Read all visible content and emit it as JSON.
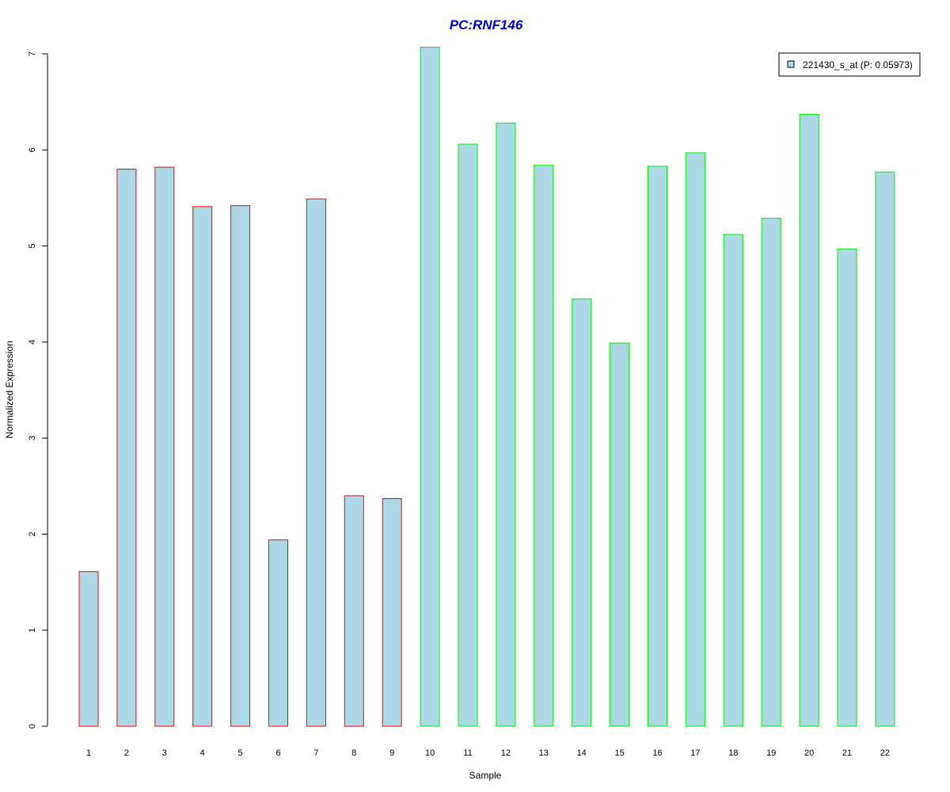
{
  "chart_data": {
    "type": "bar",
    "title": "PC:RNF146",
    "xlabel": "Sample",
    "ylabel": "Normalized Expression",
    "ylim": [
      0,
      7
    ],
    "yticks": [
      0,
      1,
      2,
      3,
      4,
      5,
      6,
      7
    ],
    "grid": false,
    "legend_position": "top-right",
    "categories": [
      "1",
      "2",
      "3",
      "4",
      "5",
      "6",
      "7",
      "8",
      "9",
      "10",
      "11",
      "12",
      "13",
      "14",
      "15",
      "16",
      "17",
      "18",
      "19",
      "20",
      "21",
      "22"
    ],
    "series": [
      {
        "name": "221430_s_at (P: 0.05973)",
        "values": [
          1.61,
          5.8,
          5.82,
          5.41,
          5.42,
          1.94,
          5.49,
          2.4,
          2.37,
          7.07,
          6.06,
          6.28,
          5.84,
          4.45,
          3.99,
          5.83,
          5.97,
          5.12,
          5.29,
          6.37,
          4.97,
          5.77
        ],
        "groups": [
          "red",
          "red",
          "red",
          "red",
          "red",
          "red",
          "red",
          "red",
          "red",
          "green",
          "green",
          "green",
          "green",
          "green",
          "green",
          "green",
          "green",
          "green",
          "green",
          "green",
          "green",
          "green"
        ]
      }
    ],
    "colors": {
      "title": "#0000cc",
      "bar_fill": "#add8e6",
      "border_red": "#ff0000",
      "border_green": "#00ee00",
      "axis": "#000000"
    }
  }
}
